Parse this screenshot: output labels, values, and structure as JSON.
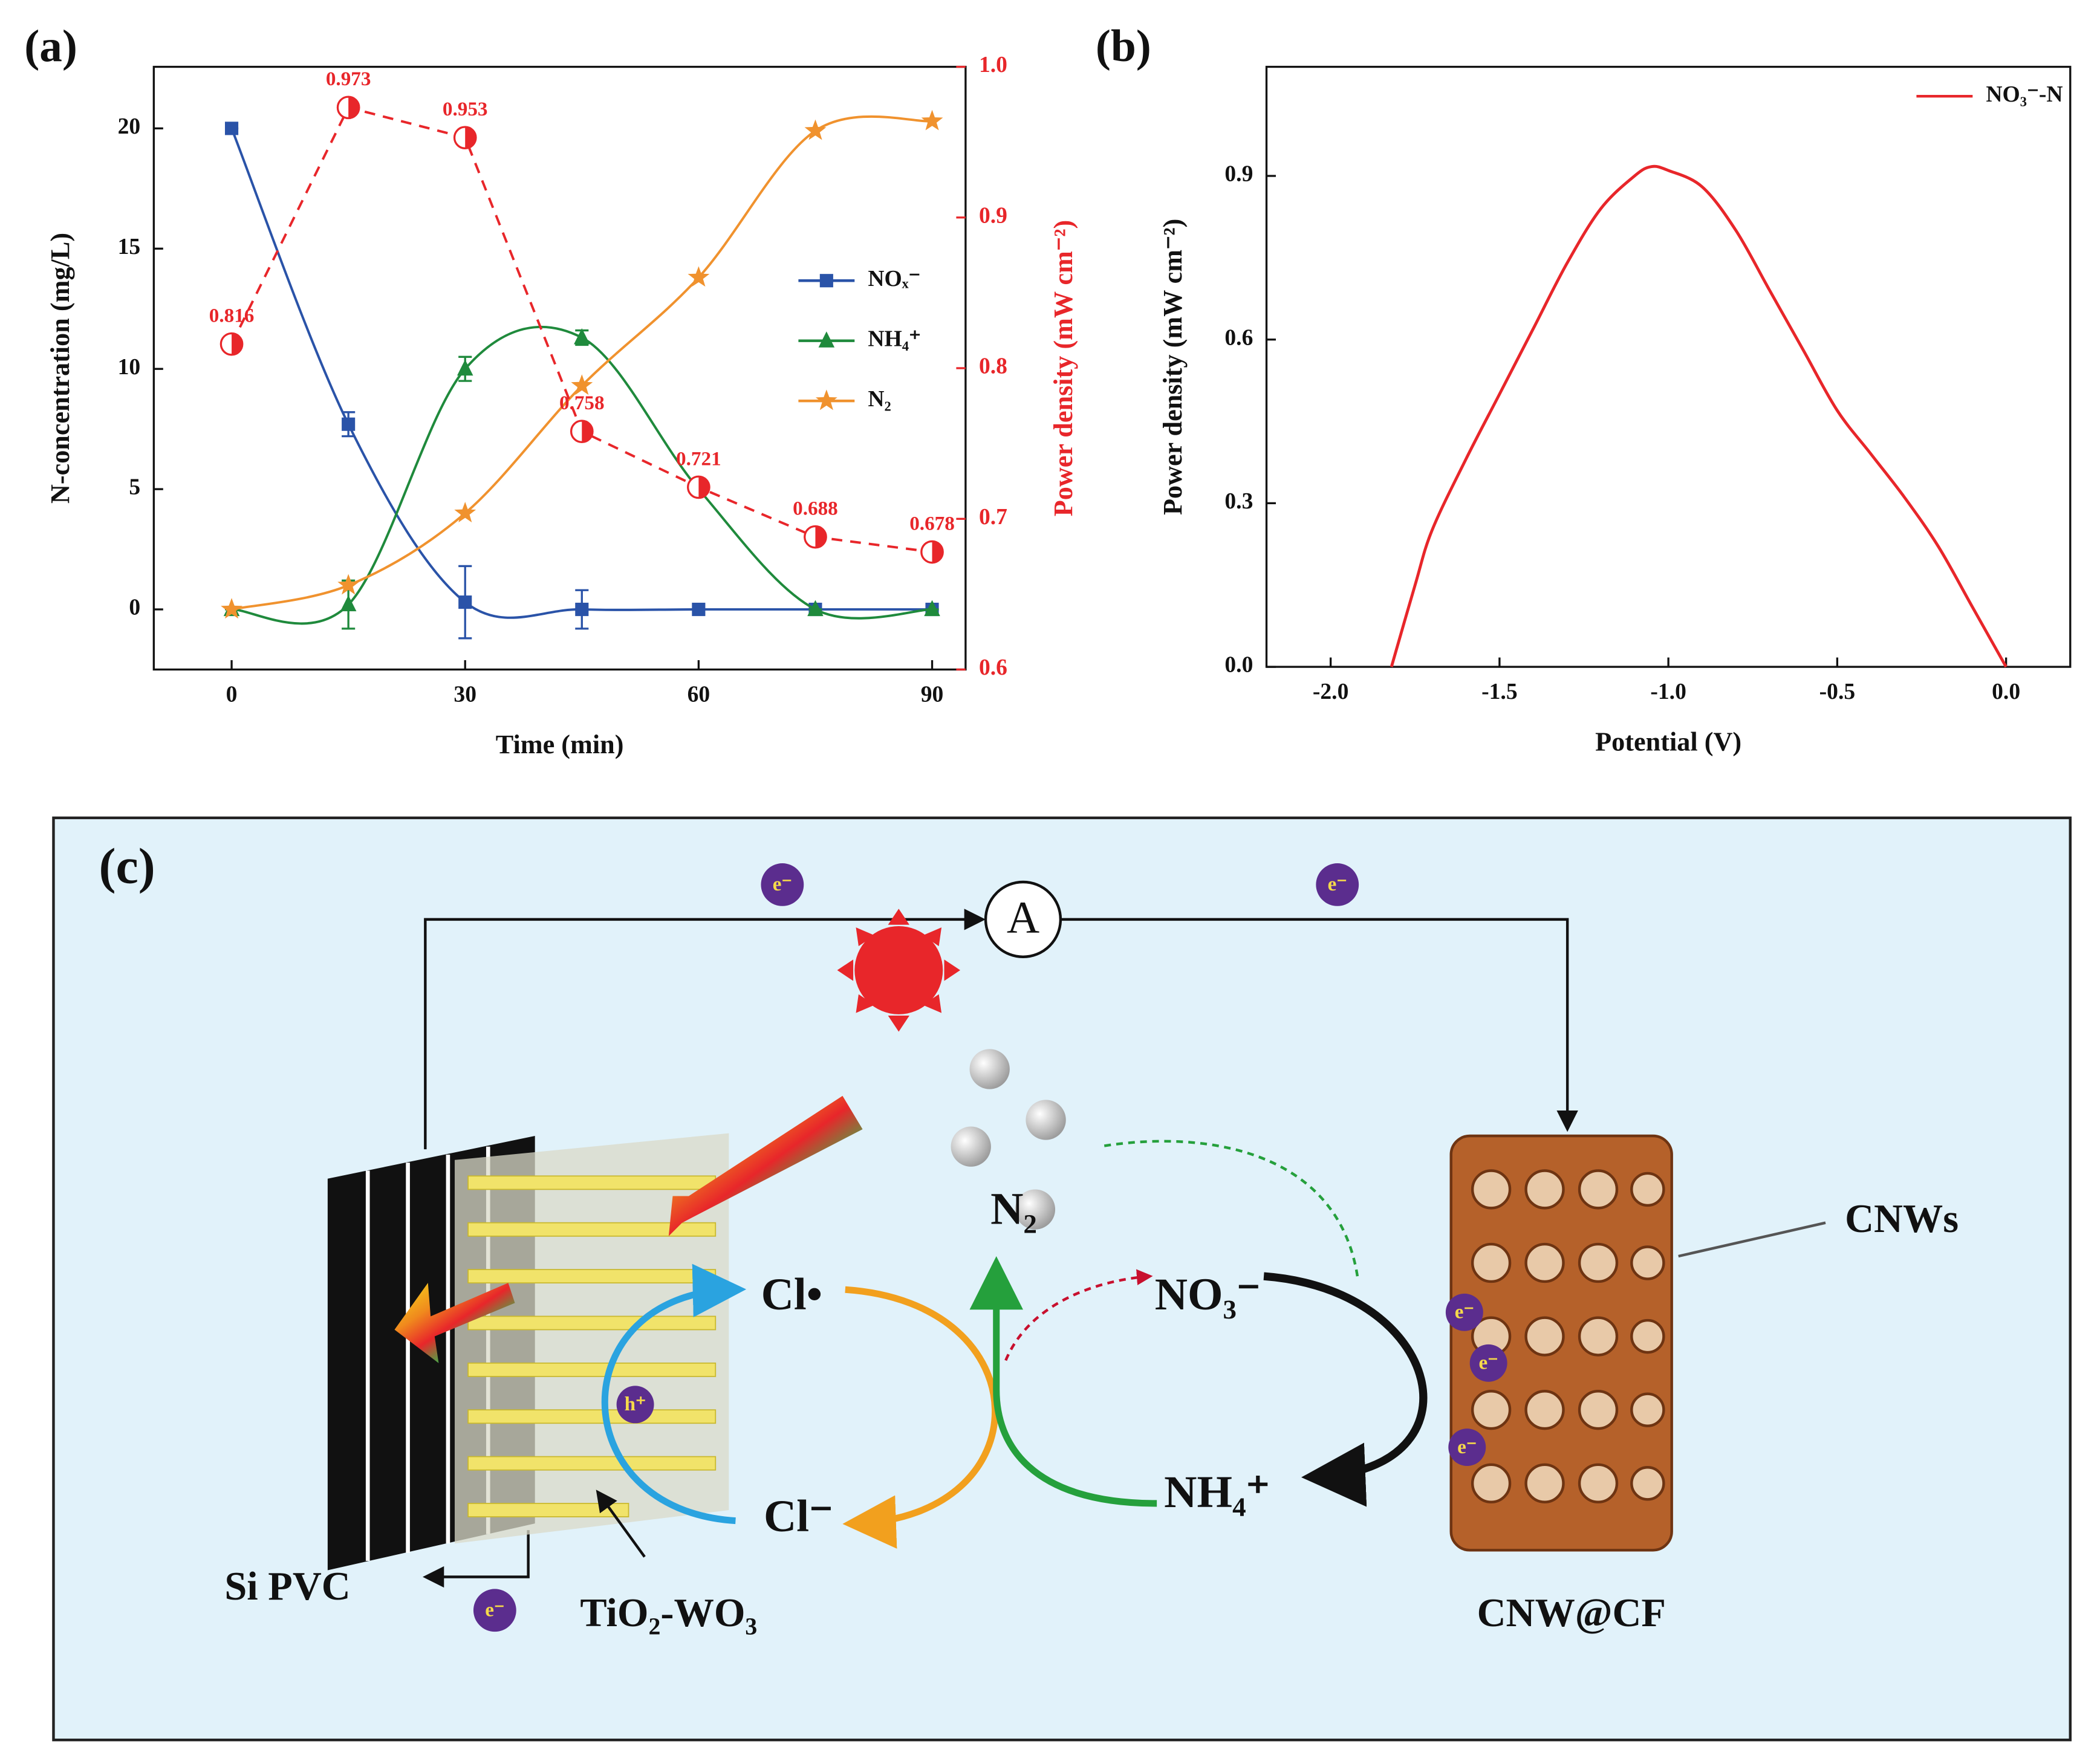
{
  "chart_data": [
    {
      "type": "line",
      "panel_label": "(a)",
      "x_label": "Time (min)",
      "y_label": "N-concentration (mg/L)",
      "y2_label": "Power density (mW cm⁻²)",
      "x": [
        0,
        15,
        30,
        45,
        60,
        75,
        90
      ],
      "xlim": [
        -10,
        94.3
      ],
      "xticks": [
        0,
        30,
        60,
        90
      ],
      "ylim": [
        -2.5,
        22.56
      ],
      "yticks": [
        0,
        5,
        10,
        15,
        20
      ],
      "y2lim": [
        0.6,
        1.0
      ],
      "y2ticks": [
        0.6,
        0.7,
        0.8,
        0.9,
        {
          "value": 1.0,
          "label": "1.0"
        }
      ],
      "legend": "center right",
      "series": [
        {
          "name": "NOₓ⁻",
          "color": "#2a53a8",
          "marker": "square",
          "line": "smooth",
          "values": [
            20,
            7.7,
            0.3,
            0,
            0,
            0,
            0
          ],
          "errors": [
            0,
            0.5,
            1.5,
            0.8,
            0,
            0,
            0
          ]
        },
        {
          "name": "NH₄⁺",
          "color": "#1f8a3c",
          "marker": "triangle",
          "line": "smooth",
          "values": [
            0,
            0.2,
            10,
            11.3,
            5,
            0,
            0
          ],
          "errors": [
            0,
            1,
            0.5,
            0.3,
            0,
            0,
            0
          ]
        },
        {
          "name": "N₂",
          "color": "#f0922e",
          "marker": "star",
          "line": "smooth",
          "values": [
            0,
            1,
            4,
            9.3,
            13.8,
            19.9,
            20.3
          ]
        },
        {
          "color": "#e8262a",
          "marker": "halfcircle",
          "line": "dashed",
          "axis": "y2",
          "data_labels": true,
          "values": [
            0.816,
            0.973,
            0.953,
            0.758,
            0.721,
            0.688,
            0.678
          ]
        }
      ]
    },
    {
      "type": "line",
      "panel_label": "(b)",
      "x_label": "Potential (V)",
      "y_label": "Power density (mW cm⁻²)",
      "x": [
        -1.82,
        -1.75,
        -1.7,
        -1.6,
        -1.5,
        -1.4,
        -1.3,
        -1.2,
        -1.1,
        -1.05,
        -1.0,
        -0.9,
        -0.8,
        -0.7,
        -0.6,
        -0.5,
        -0.4,
        -0.3,
        -0.2,
        -0.1,
        0
      ],
      "xlim": [
        -2.19,
        0.19
      ],
      "xticks": [
        {
          "value": -2.0,
          "label": "-2.0"
        },
        -1.5,
        {
          "value": -1.0,
          "label": "-1.0"
        },
        -0.5,
        {
          "value": 0,
          "label": "0.0"
        }
      ],
      "ylim": [
        0,
        1.1
      ],
      "yticks": [
        {
          "value": 0,
          "label": "0.0"
        },
        0.3,
        0.6,
        0.9
      ],
      "legend": "upper right",
      "series": [
        {
          "name": "NO₃⁻-N",
          "color": "#e8262a",
          "line": "smooth",
          "values": [
            0,
            0.15,
            0.25,
            0.38,
            0.5,
            0.62,
            0.74,
            0.84,
            0.9,
            0.917,
            0.91,
            0.88,
            0.8,
            0.69,
            0.58,
            0.47,
            0.39,
            0.31,
            0.22,
            0.11,
            0
          ]
        }
      ]
    }
  ],
  "diagram": {
    "panel_label": "(c)",
    "ammeter": "A",
    "electron_labels": [
      "e⁻",
      "e⁻",
      "e⁻",
      "e⁻",
      "e⁻",
      "e⁻"
    ],
    "hole_label": "h⁺",
    "n2": "N₂",
    "cl_radical": "Cl•",
    "cl_ion": "Cl⁻",
    "nitrate": "NO₃⁻",
    "ammonium": "NH₄⁺",
    "cnws": "CNWs",
    "si_pvc": "Si PVC",
    "photoanode": "TiO₂-WO₃",
    "cathode": "CNW@CF"
  }
}
